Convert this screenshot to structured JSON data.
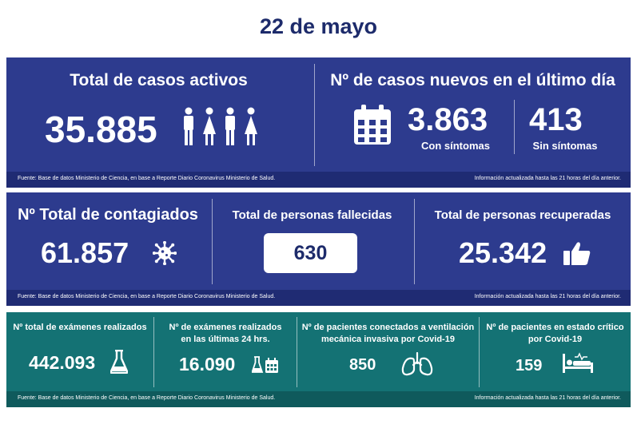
{
  "date": "22 de mayo",
  "panel1": {
    "active_title": "Total de casos activos",
    "active_value": "35.885",
    "new_title": "Nº de casos nuevos en el último día",
    "with_symptoms_value": "3.863",
    "with_symptoms_label": "Con síntomas",
    "without_symptoms_value": "413",
    "without_symptoms_label": "Sin síntomas",
    "source": "Fuente: Base de datos Ministerio de Ciencia, en base a Reporte Diario Coronavirus Ministerio de Salud.",
    "updated": "Información actualizada hasta las 21 horas  del día anterior."
  },
  "panel2": {
    "infected_title": "Nº Total de contagiados",
    "infected_value": "61.857",
    "deaths_title": "Total de personas fallecidas",
    "deaths_value": "630",
    "recovered_title": "Total de personas recuperadas",
    "recovered_value": "25.342",
    "source": "Fuente: Base de datos Ministerio de Ciencia, en base a Reporte Diario Coronavirus Ministerio de Salud.",
    "updated": "Información actualizada hasta las 21 horas  del día anterior."
  },
  "panel3": {
    "exams_title": "Nº total de exámenes realizados",
    "exams_value": "442.093",
    "exams24_title_1": "Nº de exámenes realizados",
    "exams24_title_2": "en las últimas 24 hrs.",
    "exams24_value": "16.090",
    "ventilator_title_1": "Nº de pacientes conectados a ventilación",
    "ventilator_title_2": "mecánica invasiva por Covid-19",
    "ventilator_value": "850",
    "critical_title_1": "Nº de pacientes en estado crítico",
    "critical_title_2": "por Covid-19",
    "critical_value": "159",
    "source": "Fuente: Base de datos Ministerio de Ciencia, en base a Reporte Diario Coronavirus Ministerio de Salud.",
    "updated": "Información actualizada hasta las 21 horas  del día anterior."
  },
  "icons": [
    "people-icon",
    "calendar-icon",
    "virus-icon",
    "thumbs-up-icon",
    "flask-icon",
    "flask-calendar-icon",
    "lungs-icon",
    "hospital-bed-icon"
  ],
  "colors": {
    "title": "#1d2b6b",
    "blue_panel": "#2d3b8e",
    "teal_panel": "#147274"
  }
}
